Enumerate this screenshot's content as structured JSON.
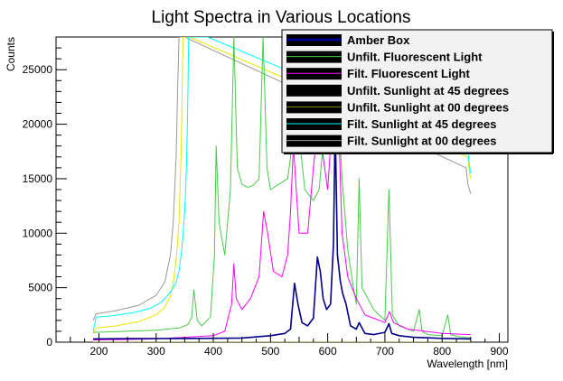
{
  "chart_data": {
    "type": "line",
    "title": "Light Spectra in Various Locations",
    "xlabel": "Wavelength [nm]",
    "ylabel": "Counts",
    "xlim": [
      125,
      915
    ],
    "ylim": [
      0,
      28000
    ],
    "x_ticks": [
      200,
      300,
      400,
      500,
      600,
      700,
      800,
      900
    ],
    "y_ticks": [
      0,
      5000,
      10000,
      15000,
      20000,
      25000
    ],
    "grid": false,
    "legend_position": "top-right",
    "series": [
      {
        "name": "Amber Box",
        "color": "#00008b",
        "x": [
          190,
          250,
          300,
          350,
          400,
          450,
          500,
          525,
          535,
          542,
          548,
          555,
          565,
          575,
          582,
          587,
          592,
          598,
          605,
          610,
          613,
          617,
          622,
          626,
          632,
          640,
          650,
          655,
          665,
          680,
          700,
          707,
          712,
          725,
          750,
          800,
          850
        ],
        "y": [
          300,
          320,
          330,
          340,
          360,
          380,
          600,
          800,
          1200,
          5400,
          3500,
          1800,
          1500,
          2200,
          7800,
          6500,
          4000,
          3000,
          3500,
          9000,
          20000,
          8000,
          5600,
          4500,
          3500,
          1500,
          1200,
          1800,
          800,
          700,
          900,
          1700,
          800,
          600,
          450,
          350,
          300
        ]
      },
      {
        "name": "Unfilt. Fluorescent Light",
        "color": "#44cc44",
        "x": [
          190,
          250,
          300,
          340,
          355,
          362,
          366,
          372,
          380,
          395,
          402,
          405,
          410,
          420,
          430,
          436,
          442,
          450,
          460,
          470,
          480,
          487,
          494,
          500,
          530,
          535,
          540,
          544,
          548,
          560,
          575,
          585,
          595,
          605,
          611,
          615,
          620,
          625,
          635,
          645,
          650,
          655,
          660,
          680,
          700,
          707,
          713,
          725,
          750,
          760,
          765,
          775,
          800,
          810,
          815,
          830,
          850
        ],
        "y": [
          900,
          1000,
          1100,
          1300,
          1600,
          2200,
          4800,
          2000,
          1500,
          2300,
          8000,
          18000,
          11000,
          8000,
          14000,
          28000,
          16000,
          14500,
          14200,
          14400,
          15000,
          28000,
          16000,
          14000,
          15000,
          17000,
          26000,
          28000,
          20000,
          14000,
          13000,
          14000,
          20000,
          26000,
          28000,
          28000,
          20000,
          15000,
          8500,
          5000,
          3500,
          15000,
          5000,
          3000,
          2000,
          14000,
          2500,
          1500,
          1000,
          3000,
          1000,
          700,
          600,
          2500,
          700,
          500,
          400
        ]
      },
      {
        "name": "Filt. Fluorescent Light",
        "color": "#ff00ff",
        "x": [
          190,
          300,
          400,
          420,
          432,
          436,
          440,
          450,
          465,
          480,
          488,
          495,
          505,
          520,
          530,
          535,
          540,
          545,
          550,
          565,
          575,
          585,
          592,
          600,
          605,
          612,
          618,
          625,
          635,
          650,
          665,
          680,
          700,
          708,
          715,
          740,
          800,
          850
        ],
        "y": [
          200,
          300,
          600,
          1000,
          3500,
          7200,
          4000,
          3000,
          4000,
          6000,
          12000,
          10000,
          6500,
          6000,
          8000,
          12000,
          18000,
          14000,
          10000,
          10000,
          16000,
          21000,
          17000,
          14000,
          18000,
          28000,
          22000,
          10000,
          6000,
          4000,
          2500,
          2200,
          1800,
          2800,
          1800,
          1200,
          800,
          700
        ]
      },
      {
        "name": "Unfilt. Sunlight at 45 degrees",
        "color": "#000000",
        "x": [
          190,
          850
        ],
        "y": [
          0,
          0
        ]
      },
      {
        "name": "Unfilt. Sunlight at 00 degrees",
        "color": "#888800",
        "x": [
          190,
          850
        ],
        "y": [
          0,
          0
        ]
      },
      {
        "name": "Filt. Sunlight at 45 degrees",
        "color": "#00ffff",
        "x": [
          190,
          195,
          220,
          260,
          290,
          310,
          325,
          335,
          340,
          345,
          350,
          353,
          355,
          357,
          362,
          380,
          390,
          845,
          847,
          850
        ],
        "y": [
          1000,
          2300,
          2400,
          2700,
          3100,
          3700,
          4600,
          5500,
          6500,
          8500,
          12000,
          16000,
          21000,
          28000,
          28000,
          28000,
          28000,
          18000,
          16500,
          15500
        ]
      },
      {
        "name": "Filt. Sunlight at 00 degrees",
        "color": "#999999",
        "x": [
          190,
          195,
          230,
          270,
          300,
          315,
          325,
          330,
          335,
          338,
          340,
          342,
          345,
          350,
          842,
          845,
          850
        ],
        "y": [
          2000,
          2600,
          2900,
          3400,
          4300,
          5500,
          8000,
          11000,
          17000,
          24000,
          28000,
          28000,
          28000,
          28000,
          16000,
          14500,
          13600
        ]
      },
      {
        "name": "",
        "color": "#e6e600",
        "x": [
          190,
          195,
          230,
          270,
          300,
          315,
          325,
          330,
          335,
          340,
          344,
          347,
          350,
          358,
          845,
          848,
          850
        ],
        "y": [
          800,
          1300,
          1500,
          1900,
          2500,
          3200,
          4200,
          5500,
          7500,
          11000,
          18000,
          28000,
          28000,
          28000,
          17000,
          15500,
          15000
        ]
      }
    ]
  }
}
